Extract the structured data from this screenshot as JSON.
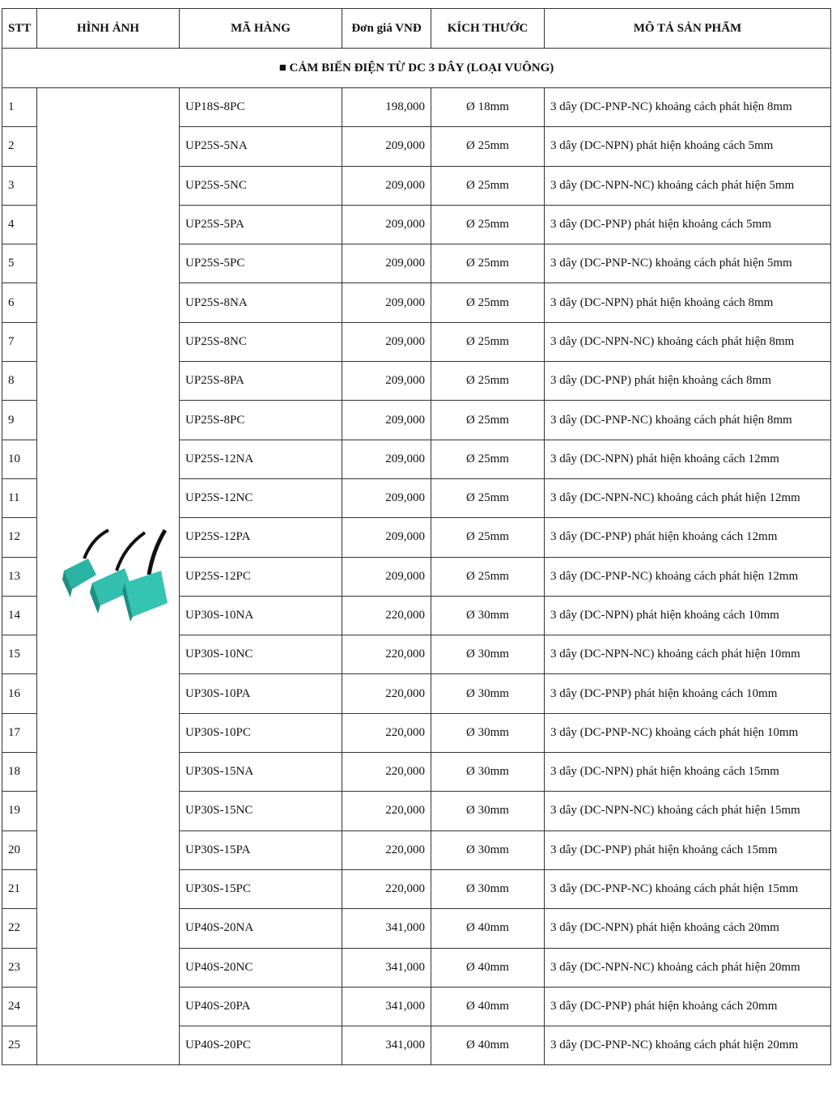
{
  "headers": {
    "stt": "STT",
    "image": "HÌNH ẢNH",
    "code": "MÃ HÀNG",
    "price": "Đơn giá VNĐ",
    "size": "KÍCH THƯỚC",
    "desc": "MÔ TẢ SẢN PHẨM"
  },
  "section_title": "■ CẢM BIẾN ĐIỆN TỪ DC 3 DÂY (LOẠI VUÔNG)",
  "product_image": "teal-square-proximity-sensors",
  "rows": [
    {
      "stt": "1",
      "code": "UP18S-8PC",
      "price": "198,000",
      "size": "Ø 18mm",
      "desc": "3 dây (DC-PNP-NC) khoảng cách phát hiện 8mm"
    },
    {
      "stt": "2",
      "code": "UP25S-5NA",
      "price": "209,000",
      "size": "Ø 25mm",
      "desc": "3 dây (DC-NPN) phát hiện khoảng cách 5mm"
    },
    {
      "stt": "3",
      "code": "UP25S-5NC",
      "price": "209,000",
      "size": "Ø 25mm",
      "desc": "3 dây (DC-NPN-NC) khoảng cách phát hiện 5mm"
    },
    {
      "stt": "4",
      "code": "UP25S-5PA",
      "price": "209,000",
      "size": "Ø 25mm",
      "desc": "3 dây (DC-PNP) phát hiện khoảng cách 5mm"
    },
    {
      "stt": "5",
      "code": "UP25S-5PC",
      "price": "209,000",
      "size": "Ø 25mm",
      "desc": "3 dây (DC-PNP-NC) khoảng cách phát hiện 5mm"
    },
    {
      "stt": "6",
      "code": "UP25S-8NA",
      "price": "209,000",
      "size": "Ø 25mm",
      "desc": "3 dây (DC-NPN) phát hiện khoảng cách 8mm"
    },
    {
      "stt": "7",
      "code": "UP25S-8NC",
      "price": "209,000",
      "size": "Ø 25mm",
      "desc": "3 dây (DC-NPN-NC) khoảng cách phát hiện 8mm"
    },
    {
      "stt": "8",
      "code": "UP25S-8PA",
      "price": "209,000",
      "size": "Ø 25mm",
      "desc": "3 dây (DC-PNP) phát hiện khoảng cách 8mm"
    },
    {
      "stt": "9",
      "code": "UP25S-8PC",
      "price": "209,000",
      "size": "Ø 25mm",
      "desc": "3 dây (DC-PNP-NC) khoảng cách phát hiện 8mm"
    },
    {
      "stt": "10",
      "code": "UP25S-12NA",
      "price": "209,000",
      "size": "Ø 25mm",
      "desc": "3 dây (DC-NPN) phát hiện khoảng cách 12mm"
    },
    {
      "stt": "11",
      "code": "UP25S-12NC",
      "price": "209,000",
      "size": "Ø 25mm",
      "desc": "3 dây (DC-NPN-NC) khoảng cách phát hiện 12mm"
    },
    {
      "stt": "12",
      "code": "UP25S-12PA",
      "price": "209,000",
      "size": "Ø 25mm",
      "desc": "3 dây (DC-PNP) phát hiện khoảng cách 12mm"
    },
    {
      "stt": "13",
      "code": "UP25S-12PC",
      "price": "209,000",
      "size": "Ø 25mm",
      "desc": "3 dây (DC-PNP-NC) khoảng cách phát hiện 12mm"
    },
    {
      "stt": "14",
      "code": "UP30S-10NA",
      "price": "220,000",
      "size": "Ø 30mm",
      "desc": "3 dây (DC-NPN) phát hiện khoảng cách 10mm"
    },
    {
      "stt": "15",
      "code": "UP30S-10NC",
      "price": "220,000",
      "size": "Ø 30mm",
      "desc": "3 dây (DC-NPN-NC) khoảng cách phát hiện 10mm"
    },
    {
      "stt": "16",
      "code": "UP30S-10PA",
      "price": "220,000",
      "size": "Ø 30mm",
      "desc": "3 dây (DC-PNP) phát hiện khoảng cách 10mm"
    },
    {
      "stt": "17",
      "code": "UP30S-10PC",
      "price": "220,000",
      "size": "Ø 30mm",
      "desc": "3 dây (DC-PNP-NC) khoảng cách phát hiện 10mm"
    },
    {
      "stt": "18",
      "code": "UP30S-15NA",
      "price": "220,000",
      "size": "Ø 30mm",
      "desc": "3 dây (DC-NPN) phát hiện khoảng cách 15mm"
    },
    {
      "stt": "19",
      "code": "UP30S-15NC",
      "price": "220,000",
      "size": "Ø 30mm",
      "desc": "3 dây (DC-NPN-NC) khoảng cách phát hiện 15mm"
    },
    {
      "stt": "20",
      "code": "UP30S-15PA",
      "price": "220,000",
      "size": "Ø 30mm",
      "desc": "3 dây (DC-PNP) phát hiện khoảng cách 15mm"
    },
    {
      "stt": "21",
      "code": "UP30S-15PC",
      "price": "220,000",
      "size": "Ø 30mm",
      "desc": "3 dây (DC-PNP-NC) khoảng cách phát hiện 15mm"
    },
    {
      "stt": "22",
      "code": "UP40S-20NA",
      "price": "341,000",
      "size": "Ø 40mm",
      "desc": "3 dây (DC-NPN) phát hiện khoảng cách 20mm"
    },
    {
      "stt": "23",
      "code": "UP40S-20NC",
      "price": "341,000",
      "size": "Ø 40mm",
      "desc": "3 dây (DC-NPN-NC) khoảng cách phát hiện 20mm"
    },
    {
      "stt": "24",
      "code": "UP40S-20PA",
      "price": "341,000",
      "size": "Ø 40mm",
      "desc": "3 dây (DC-PNP) phát hiện khoảng cách 20mm"
    },
    {
      "stt": "25",
      "code": "UP40S-20PC",
      "price": "341,000",
      "size": "Ø 40mm",
      "desc": "3 dây (DC-PNP-NC) khoảng cách phát hiện 20mm"
    }
  ]
}
